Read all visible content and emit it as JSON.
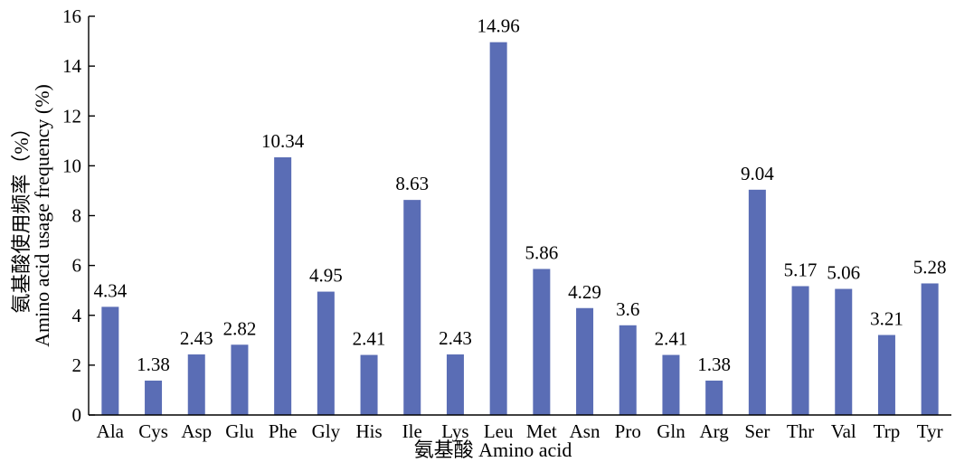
{
  "chart_data": {
    "type": "bar",
    "categories": [
      "Ala",
      "Cys",
      "Asp",
      "Glu",
      "Phe",
      "Gly",
      "His",
      "Ile",
      "Lys",
      "Leu",
      "Met",
      "Asn",
      "Pro",
      "Gln",
      "Arg",
      "Ser",
      "Thr",
      "Val",
      "Trp",
      "Tyr"
    ],
    "values": [
      4.34,
      1.38,
      2.43,
      2.82,
      10.34,
      4.95,
      2.41,
      8.63,
      2.43,
      14.96,
      5.86,
      4.29,
      3.6,
      2.41,
      1.38,
      9.04,
      5.17,
      5.06,
      3.21,
      5.28
    ],
    "value_labels": [
      "4.34",
      "1.38",
      "2.43",
      "2.82",
      "10.34",
      "4.95",
      "2.41",
      "8.63",
      "2.43",
      "14.96",
      "5.86",
      "4.29",
      "3.6",
      "2.41",
      "1.38",
      "9.04",
      "5.17",
      "5.06",
      "3.21",
      "5.28"
    ],
    "xlabel": "氨基酸 Amino acid",
    "ylabel_line1": "氨基酸使用频率（%）",
    "ylabel_line2": "Amino acid usage frequency (%)",
    "ylim": [
      0,
      16
    ],
    "yticks": [
      0,
      2,
      4,
      6,
      8,
      10,
      12,
      14,
      16
    ],
    "grid": false,
    "bar_color": "#5a6db5"
  }
}
